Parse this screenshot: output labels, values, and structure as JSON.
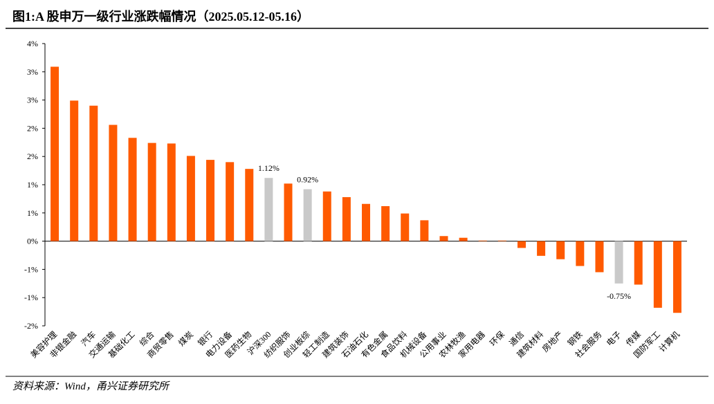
{
  "header": {
    "title": "图1:A 股申万一级行业涨跌幅情况（2025.05.12-05.16）"
  },
  "chart_data": {
    "type": "bar",
    "categories": [
      "美容护理",
      "非银金融",
      "汽车",
      "交通运输",
      "基础化工",
      "综合",
      "商贸零售",
      "煤炭",
      "银行",
      "电力设备",
      "医药生物",
      "沪深300",
      "纺织服饰",
      "创业板综",
      "轻工制造",
      "建筑装饰",
      "石油石化",
      "有色金属",
      "食品饮料",
      "机械设备",
      "公用事业",
      "农林牧渔",
      "家用电器",
      "环保",
      "通信",
      "建筑材料",
      "房地产",
      "钢铁",
      "社会服务",
      "电子",
      "传媒",
      "国防军工",
      "计算机"
    ],
    "values": [
      3.09,
      2.49,
      2.4,
      2.06,
      1.83,
      1.74,
      1.73,
      1.51,
      1.44,
      1.4,
      1.28,
      1.12,
      1.02,
      0.92,
      0.88,
      0.78,
      0.66,
      0.62,
      0.49,
      0.37,
      0.09,
      0.06,
      0.01,
      0.01,
      -0.12,
      -0.26,
      -0.32,
      -0.44,
      -0.55,
      -0.75,
      -0.77,
      -1.18,
      -1.27
    ],
    "value_labels": [
      null,
      null,
      null,
      null,
      null,
      null,
      null,
      null,
      null,
      null,
      null,
      "1.12%",
      null,
      "0.92%",
      null,
      null,
      null,
      null,
      null,
      null,
      null,
      null,
      null,
      null,
      null,
      null,
      null,
      null,
      null,
      "-0.75%",
      null,
      null,
      null
    ],
    "colors": [
      "#ff5a00",
      "#ff5a00",
      "#ff5a00",
      "#ff5a00",
      "#ff5a00",
      "#ff5a00",
      "#ff5a00",
      "#ff5a00",
      "#ff5a00",
      "#ff5a00",
      "#ff5a00",
      "#c9c9c9",
      "#ff5a00",
      "#c9c9c9",
      "#ff5a00",
      "#ff5a00",
      "#ff5a00",
      "#ff5a00",
      "#ff5a00",
      "#ff5a00",
      "#ff5a00",
      "#ff5a00",
      "#ff5a00",
      "#ff5a00",
      "#ff5a00",
      "#ff5a00",
      "#ff5a00",
      "#ff5a00",
      "#ff5a00",
      "#c9c9c9",
      "#ff5a00",
      "#ff5a00",
      "#ff5a00"
    ],
    "ylim": [
      -1.5,
      3.5
    ],
    "yticks": [
      {
        "value": 3.5,
        "label": "4%"
      },
      {
        "value": 3,
        "label": "3%"
      },
      {
        "value": 2.5,
        "label": "3%"
      },
      {
        "value": 2,
        "label": "2%"
      },
      {
        "value": 1.5,
        "label": "2%"
      },
      {
        "value": 1,
        "label": "1%"
      },
      {
        "value": 0.5,
        "label": "1%"
      },
      {
        "value": 0,
        "label": "0%"
      },
      {
        "value": -0.5,
        "label": "-1%"
      },
      {
        "value": -1,
        "label": "-1%"
      },
      {
        "value": -1.5,
        "label": "-2%"
      }
    ]
  },
  "footer": {
    "source": "资料来源：Wind，甬兴证券研究所"
  }
}
